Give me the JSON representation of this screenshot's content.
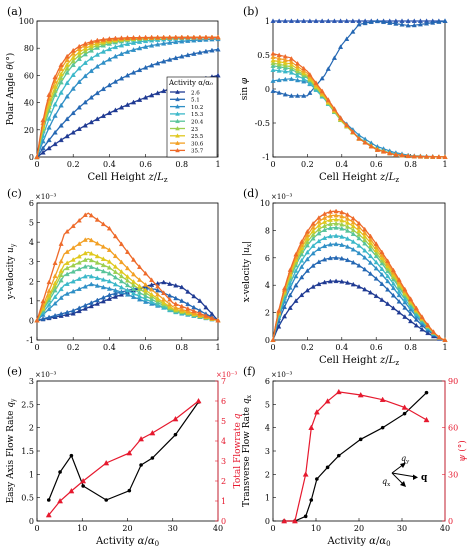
{
  "colors": {
    "black": "#000000",
    "red": "#e6192e",
    "activity": [
      "#1f3a93",
      "#2467b3",
      "#2f8fc6",
      "#3bb8c9",
      "#58c49a",
      "#9ccf4f",
      "#e0c81e",
      "#f2a024",
      "#ee6a2a",
      "#e83e20"
    ],
    "sin_ones_top": "#2b55b0",
    "sin_ones_bottom": "#e8502a"
  },
  "legend": {
    "title": "Activity α/α₀",
    "entries": [
      "2.6",
      "5.1",
      "10.2",
      "15.3",
      "20.4",
      "23",
      "25.5",
      "30.6",
      "35.7"
    ]
  },
  "chart_data": [
    {
      "panel": "(a)",
      "type": "line",
      "marker": "triangle",
      "xlabel": "Cell Height z/L_z",
      "ylabel": "Polar Angle θ(°)",
      "xlim": [
        0,
        1
      ],
      "ylim": [
        0,
        100
      ],
      "xticks": [
        "0",
        "0.2",
        "0.4",
        "0.6",
        "0.8",
        "1"
      ],
      "yticks": [
        "0",
        "20",
        "40",
        "60",
        "80",
        "100"
      ],
      "series": [
        {
          "name": "2.6",
          "z0": 0.48,
          "plateau": 88
        },
        {
          "name": "5.1",
          "z0": 0.24,
          "plateau": 88
        },
        {
          "name": "10.2",
          "z0": 0.13,
          "plateau": 88
        },
        {
          "name": "15.3",
          "z0": 0.095,
          "plateau": 88
        },
        {
          "name": "20.4",
          "z0": 0.075,
          "plateau": 88
        },
        {
          "name": "23",
          "z0": 0.068,
          "plateau": 88
        },
        {
          "name": "25.5",
          "z0": 0.062,
          "plateau": 88
        },
        {
          "name": "30.6",
          "z0": 0.055,
          "plateau": 88
        },
        {
          "name": "35.7",
          "z0": 0.05,
          "plateau": 88
        }
      ]
    },
    {
      "panel": "(b)",
      "type": "line",
      "marker": "triangle",
      "xlabel": "Cell Height z/L_z",
      "ylabel": "sin φ",
      "xlim": [
        0,
        1
      ],
      "ylim": [
        -1,
        1
      ],
      "xticks": [
        "0",
        "0.2",
        "0.4",
        "0.6",
        "0.8",
        "1"
      ],
      "yticks": [
        "-1",
        "-0.5",
        "0",
        "0.5",
        "1"
      ],
      "series": [
        {
          "name": "2.6",
          "points": [
            [
              0,
              1
            ],
            [
              1,
              1
            ]
          ]
        },
        {
          "name": "5.1",
          "points": [
            [
              0,
              -0.03
            ],
            [
              0.1,
              -0.1
            ],
            [
              0.2,
              -0.1
            ],
            [
              0.3,
              0.2
            ],
            [
              0.4,
              0.65
            ],
            [
              0.5,
              0.95
            ],
            [
              0.6,
              1
            ],
            [
              0.8,
              0.93
            ],
            [
              1,
              1
            ]
          ]
        },
        {
          "name": "10.2",
          "points": [
            [
              0,
              0.12
            ],
            [
              0.1,
              0.15
            ],
            [
              0.2,
              0.1
            ],
            [
              0.3,
              -0.1
            ],
            [
              0.4,
              -0.45
            ],
            [
              0.5,
              -0.68
            ],
            [
              0.6,
              -0.84
            ],
            [
              0.7,
              -0.93
            ],
            [
              0.8,
              -0.98
            ],
            [
              1,
              -1
            ]
          ]
        },
        {
          "name": "15.3",
          "points": [
            [
              0,
              0.28
            ],
            [
              0.1,
              0.25
            ],
            [
              0.2,
              0.12
            ],
            [
              0.3,
              -0.15
            ],
            [
              0.4,
              -0.48
            ],
            [
              0.5,
              -0.72
            ],
            [
              0.6,
              -0.88
            ],
            [
              0.7,
              -0.95
            ],
            [
              0.8,
              -0.99
            ],
            [
              1,
              -1
            ]
          ]
        },
        {
          "name": "20.4",
          "points": [
            [
              0,
              0.34
            ],
            [
              0.1,
              0.3
            ],
            [
              0.2,
              0.16
            ],
            [
              0.3,
              -0.14
            ],
            [
              0.4,
              -0.48
            ],
            [
              0.5,
              -0.72
            ],
            [
              0.6,
              -0.88
            ],
            [
              0.7,
              -0.96
            ],
            [
              0.8,
              -0.99
            ],
            [
              1,
              -1
            ]
          ]
        },
        {
          "name": "23",
          "points": [
            [
              0,
              0.38
            ],
            [
              0.1,
              0.33
            ],
            [
              0.2,
              0.18
            ],
            [
              0.3,
              -0.13
            ],
            [
              0.4,
              -0.48
            ],
            [
              0.5,
              -0.73
            ],
            [
              0.6,
              -0.88
            ],
            [
              0.7,
              -0.96
            ],
            [
              0.8,
              -0.99
            ],
            [
              1,
              -1
            ]
          ]
        },
        {
          "name": "25.5",
          "points": [
            [
              0,
              0.42
            ],
            [
              0.1,
              0.37
            ],
            [
              0.2,
              0.2
            ],
            [
              0.3,
              -0.12
            ],
            [
              0.4,
              -0.47
            ],
            [
              0.5,
              -0.73
            ],
            [
              0.6,
              -0.88
            ],
            [
              0.7,
              -0.96
            ],
            [
              0.8,
              -0.99
            ],
            [
              1,
              -1
            ]
          ]
        },
        {
          "name": "30.6",
          "points": [
            [
              0,
              0.47
            ],
            [
              0.1,
              0.41
            ],
            [
              0.2,
              0.23
            ],
            [
              0.3,
              -0.1
            ],
            [
              0.4,
              -0.46
            ],
            [
              0.5,
              -0.73
            ],
            [
              0.6,
              -0.89
            ],
            [
              0.7,
              -0.96
            ],
            [
              0.8,
              -0.99
            ],
            [
              1,
              -1
            ]
          ]
        },
        {
          "name": "35.7",
          "points": [
            [
              0,
              0.52
            ],
            [
              0.1,
              0.46
            ],
            [
              0.2,
              0.26
            ],
            [
              0.3,
              -0.08
            ],
            [
              0.4,
              -0.45
            ],
            [
              0.5,
              -0.73
            ],
            [
              0.6,
              -0.89
            ],
            [
              0.7,
              -0.96
            ],
            [
              0.8,
              -0.99
            ],
            [
              1,
              -1
            ]
          ]
        }
      ]
    },
    {
      "panel": "(c)",
      "type": "line",
      "marker": "triangle",
      "xlabel": "",
      "ylabel": "y-velocity u_y",
      "exponent": "×10⁻³",
      "xlim": [
        0,
        1
      ],
      "ylim": [
        -1,
        6
      ],
      "xticks": [
        "0",
        "0.2",
        "0.4",
        "0.6",
        "0.8",
        "1"
      ],
      "yticks": [
        "-1",
        "0",
        "1",
        "2",
        "3",
        "4",
        "5",
        "6"
      ],
      "series": [
        {
          "name": "2.6",
          "points": [
            [
              0,
              0
            ],
            [
              0.2,
              0.35
            ],
            [
              0.4,
              1.1
            ],
            [
              0.6,
              1.75
            ],
            [
              0.7,
              1.95
            ],
            [
              0.8,
              1.7
            ],
            [
              0.9,
              1.0
            ],
            [
              1,
              0
            ]
          ]
        },
        {
          "name": "5.1",
          "points": [
            [
              0,
              0
            ],
            [
              0.2,
              0.5
            ],
            [
              0.4,
              1.3
            ],
            [
              0.55,
              1.65
            ],
            [
              0.65,
              1.6
            ],
            [
              0.8,
              1.0
            ],
            [
              0.9,
              0.5
            ],
            [
              1,
              0
            ]
          ]
        },
        {
          "name": "10.2",
          "points": [
            [
              0,
              0
            ],
            [
              0.15,
              1.3
            ],
            [
              0.3,
              1.85
            ],
            [
              0.45,
              1.5
            ],
            [
              0.6,
              0.95
            ],
            [
              0.8,
              0.35
            ],
            [
              1,
              0
            ]
          ]
        },
        {
          "name": "15.3",
          "points": [
            [
              0,
              0
            ],
            [
              0.15,
              1.8
            ],
            [
              0.28,
              2.3
            ],
            [
              0.4,
              2.0
            ],
            [
              0.55,
              1.3
            ],
            [
              0.75,
              0.45
            ],
            [
              1,
              0
            ]
          ]
        },
        {
          "name": "20.4",
          "points": [
            [
              0,
              0
            ],
            [
              0.15,
              2.3
            ],
            [
              0.28,
              2.8
            ],
            [
              0.4,
              2.4
            ],
            [
              0.55,
              1.5
            ],
            [
              0.75,
              0.5
            ],
            [
              1,
              0
            ]
          ]
        },
        {
          "name": "23",
          "points": [
            [
              0,
              0
            ],
            [
              0.15,
              2.6
            ],
            [
              0.28,
              3.15
            ],
            [
              0.4,
              2.7
            ],
            [
              0.55,
              1.7
            ],
            [
              0.75,
              0.55
            ],
            [
              1,
              0
            ]
          ]
        },
        {
          "name": "25.5",
          "points": [
            [
              0,
              0
            ],
            [
              0.15,
              2.85
            ],
            [
              0.28,
              3.5
            ],
            [
              0.4,
              3.0
            ],
            [
              0.55,
              1.85
            ],
            [
              0.75,
              0.6
            ],
            [
              1,
              0
            ]
          ]
        },
        {
          "name": "30.6",
          "points": [
            [
              0,
              0
            ],
            [
              0.15,
              3.4
            ],
            [
              0.28,
              4.2
            ],
            [
              0.4,
              3.6
            ],
            [
              0.55,
              2.2
            ],
            [
              0.75,
              0.7
            ],
            [
              1,
              0
            ]
          ]
        },
        {
          "name": "35.7",
          "points": [
            [
              0,
              0
            ],
            [
              0.15,
              4.4
            ],
            [
              0.28,
              5.5
            ],
            [
              0.4,
              4.7
            ],
            [
              0.55,
              2.9
            ],
            [
              0.75,
              0.9
            ],
            [
              1,
              0
            ]
          ]
        }
      ]
    },
    {
      "panel": "(d)",
      "type": "line",
      "marker": "triangle",
      "xlabel": "Cell Height z/L_z",
      "ylabel": "x-velocity |u_x|",
      "exponent": "×10⁻³",
      "xlim": [
        0,
        1
      ],
      "ylim": [
        0,
        10
      ],
      "xticks": [
        "0",
        "0.2",
        "0.4",
        "0.6",
        "0.8",
        "1"
      ],
      "yticks": [
        "0",
        "2",
        "4",
        "6",
        "8",
        "10"
      ],
      "series": [
        {
          "name": "2.6",
          "peak": 4.3
        },
        {
          "name": "5.1",
          "peak": 6.0
        },
        {
          "name": "10.2",
          "peak": 7.0
        },
        {
          "name": "15.3",
          "peak": 7.6
        },
        {
          "name": "20.4",
          "peak": 8.2
        },
        {
          "name": "23",
          "peak": 8.5
        },
        {
          "name": "25.5",
          "peak": 8.8
        },
        {
          "name": "30.6",
          "peak": 9.1
        },
        {
          "name": "35.7",
          "peak": 9.4
        }
      ]
    },
    {
      "panel": "(e)",
      "type": "line",
      "xlabel": "Activity α/α₀",
      "ylabel": "Easy Axis Flow Rate q_y",
      "ylabel_right": "Total Flowrate q",
      "exponent": "×10⁻³",
      "exponent_right": "×10⁻³",
      "xlim": [
        0,
        40
      ],
      "ylim": [
        0,
        3
      ],
      "ylim_right": [
        0,
        7
      ],
      "xticks": [
        "0",
        "10",
        "20",
        "30",
        "40"
      ],
      "yticks": [
        "0",
        "0.5",
        "1",
        "1.5",
        "2",
        "2.5",
        "3"
      ],
      "yticks_right": [
        "0",
        "1",
        "2",
        "3",
        "4",
        "5",
        "6",
        "7"
      ],
      "series": [
        {
          "name": "q_y",
          "axis": "left",
          "marker": "dot",
          "points": [
            [
              2.6,
              0.45
            ],
            [
              5.1,
              1.05
            ],
            [
              7.6,
              1.4
            ],
            [
              10.2,
              0.75
            ],
            [
              15.3,
              0.45
            ],
            [
              20.4,
              0.65
            ],
            [
              23,
              1.2
            ],
            [
              25.5,
              1.35
            ],
            [
              30.6,
              1.85
            ],
            [
              35.7,
              2.55
            ]
          ]
        },
        {
          "name": "q",
          "axis": "right",
          "marker": "triangle",
          "points": [
            [
              2.6,
              0.3
            ],
            [
              5.1,
              1.0
            ],
            [
              7.6,
              1.5
            ],
            [
              10.2,
              2.0
            ],
            [
              15.3,
              2.9
            ],
            [
              20.4,
              3.4
            ],
            [
              23,
              4.1
            ],
            [
              25.5,
              4.4
            ],
            [
              30.6,
              5.1
            ],
            [
              35.7,
              6.0
            ]
          ]
        }
      ]
    },
    {
      "panel": "(f)",
      "type": "line",
      "xlabel": "Activity α/α₀",
      "ylabel": "Transverse Flow Rate q_x",
      "ylabel_right": "ψ (°)",
      "exponent": "×10⁻³",
      "xlim": [
        0,
        40
      ],
      "ylim": [
        0,
        6
      ],
      "ylim_right": [
        0,
        90
      ],
      "xticks": [
        "0",
        "10",
        "20",
        "30",
        "40"
      ],
      "yticks": [
        "0",
        "1",
        "2",
        "3",
        "4",
        "5",
        "6"
      ],
      "yticks_right": [
        "0",
        "30",
        "60",
        "90"
      ],
      "series": [
        {
          "name": "q_x",
          "axis": "left",
          "marker": "dot",
          "points": [
            [
              2.6,
              0
            ],
            [
              5.1,
              0
            ],
            [
              7.6,
              0.2
            ],
            [
              8.9,
              0.9
            ],
            [
              10.2,
              1.8
            ],
            [
              12.7,
              2.3
            ],
            [
              15.3,
              2.8
            ],
            [
              20.4,
              3.5
            ],
            [
              25.5,
              4.0
            ],
            [
              30.6,
              4.6
            ],
            [
              35.7,
              5.5
            ]
          ]
        },
        {
          "name": "ψ",
          "axis": "right",
          "marker": "triangle",
          "points": [
            [
              2.6,
              0
            ],
            [
              5.1,
              0
            ],
            [
              7.6,
              30
            ],
            [
              8.9,
              60
            ],
            [
              10.2,
              70
            ],
            [
              12.7,
              77
            ],
            [
              15.3,
              83
            ],
            [
              20.4,
              81
            ],
            [
              25.5,
              78
            ],
            [
              30.6,
              73
            ],
            [
              35.7,
              65
            ]
          ]
        }
      ],
      "inset_labels": [
        "q_y",
        "q_x",
        "q"
      ]
    }
  ]
}
